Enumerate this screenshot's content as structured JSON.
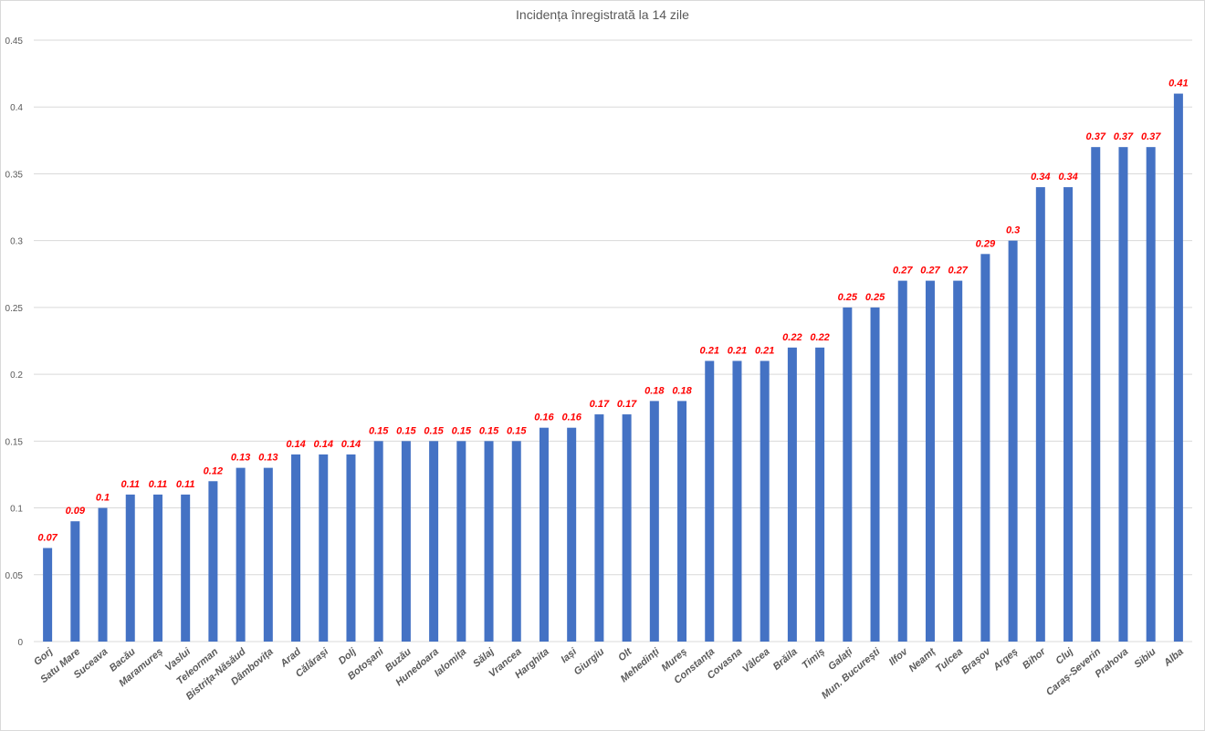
{
  "chart_data": {
    "type": "bar",
    "title": "Incidența  înregistrată la 14 zile",
    "xlabel": "",
    "ylabel": "",
    "ylim": [
      0,
      0.45
    ],
    "yticks": [
      0,
      0.05,
      0.1,
      0.15,
      0.2,
      0.25,
      0.3,
      0.35,
      0.4,
      0.45
    ],
    "ytick_labels": [
      "0",
      "0.05",
      "0.1",
      "0.15",
      "0.2",
      "0.25",
      "0.3",
      "0.35",
      "0.4",
      "0.45"
    ],
    "grid": true,
    "legend": "none",
    "bar_color": "#4472c4",
    "label_color": "#ff0000",
    "categories": [
      "Gorj",
      "Satu Mare",
      "Suceava",
      "Bacău",
      "Maramureș",
      "Vaslui",
      "Teleorman",
      "Bistrița-Năsăud",
      "Dâmbovița",
      "Arad",
      "Călărași",
      "Dolj",
      "Botoșani",
      "Buzău",
      "Hunedoara",
      "Ialomița",
      "Sălaj",
      "Vrancea",
      "Harghita",
      "Iași",
      "Giurgiu",
      "Olt",
      "Mehedinți",
      "Mureș",
      "Constanța",
      "Covasna",
      "Vâlcea",
      "Brăila",
      "Timiș",
      "Galați",
      "Mun. București",
      "Ilfov",
      "Neamț",
      "Tulcea",
      "Brașov",
      "Argeș",
      "Bihor",
      "Cluj",
      "Caraș-Severin",
      "Prahova",
      "Sibiu",
      "Alba"
    ],
    "values": [
      0.07,
      0.09,
      0.1,
      0.11,
      0.11,
      0.11,
      0.12,
      0.13,
      0.13,
      0.14,
      0.14,
      0.14,
      0.15,
      0.15,
      0.15,
      0.15,
      0.15,
      0.15,
      0.16,
      0.16,
      0.17,
      0.17,
      0.18,
      0.18,
      0.21,
      0.21,
      0.21,
      0.22,
      0.22,
      0.25,
      0.25,
      0.27,
      0.27,
      0.27,
      0.29,
      0.3,
      0.34,
      0.34,
      0.37,
      0.37,
      0.37,
      0.41
    ]
  }
}
